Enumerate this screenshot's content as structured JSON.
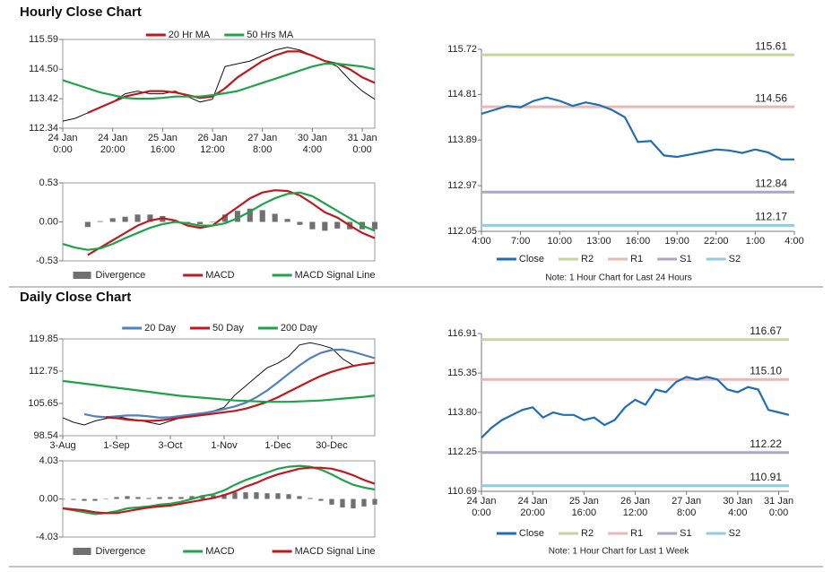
{
  "sections": [
    "Hourly Close Chart",
    "Daily Close Chart"
  ],
  "chart_data": [
    {
      "type": "line",
      "frame": true,
      "legend": "top",
      "categories": [
        "24 Jan\n0:00",
        null,
        null,
        null,
        "24 Jan\n20:00",
        null,
        null,
        null,
        "25 Jan\n16:00",
        null,
        null,
        null,
        "26 Jan\n12:00",
        null,
        null,
        null,
        "27 Jan\n8:00",
        null,
        null,
        null,
        "30 Jan\n4:00",
        null,
        null,
        null,
        "31 Jan\n0:00",
        null
      ],
      "ylim": [
        112.34,
        115.59
      ],
      "yticks": [
        112.34,
        113.42,
        {
          "value": 114.5,
          "label": "114.50"
        },
        115.59
      ],
      "series": [
        {
          "color": "#111111",
          "values": [
            112.6,
            112.7,
            112.9,
            113.1,
            113.3,
            113.6,
            113.7,
            113.6,
            113.6,
            113.7,
            113.5,
            113.3,
            113.4,
            114.6,
            114.7,
            114.8,
            115.0,
            115.2,
            115.3,
            115.2,
            115.0,
            114.8,
            114.6,
            114.1,
            113.7,
            113.4
          ]
        },
        {
          "name": "20 Hr MA",
          "color": "#c0181f",
          "values": [
            null,
            null,
            112.9,
            113.1,
            113.3,
            113.5,
            113.6,
            113.7,
            113.7,
            113.65,
            113.55,
            113.45,
            113.5,
            113.8,
            114.2,
            114.5,
            114.8,
            115.0,
            115.15,
            115.15,
            115.0,
            114.8,
            114.7,
            114.5,
            114.2,
            114.0
          ]
        },
        {
          "name": "50 Hrs MA",
          "color": "#1fa34a",
          "values": [
            114.1,
            113.95,
            113.8,
            113.65,
            113.55,
            113.45,
            113.42,
            113.42,
            113.45,
            113.5,
            113.5,
            113.5,
            113.55,
            113.62,
            113.7,
            113.85,
            114.0,
            114.15,
            114.3,
            114.45,
            114.6,
            114.7,
            114.7,
            114.65,
            114.6,
            114.5
          ]
        }
      ]
    },
    {
      "type": "macd",
      "frame": true,
      "legend": "bottom",
      "ylim": [
        -0.53,
        0.53
      ],
      "yticks": [
        -0.53,
        {
          "value": 0,
          "label": "0.00"
        },
        0.53
      ],
      "series": [
        {
          "name": "Divergence",
          "mark": "bar",
          "color": "#707070",
          "values": [
            null,
            null,
            -0.07,
            0.01,
            0.05,
            0.07,
            0.1,
            0.1,
            0.08,
            0.02,
            -0.03,
            -0.03,
            0,
            0.1,
            0.15,
            0.18,
            0.16,
            0.11,
            0.04,
            -0.04,
            -0.1,
            -0.12,
            -0.09,
            -0.1,
            -0.1,
            -0.1
          ]
        },
        {
          "name": "MACD",
          "color": "#c0181f",
          "values": [
            null,
            null,
            -0.45,
            -0.35,
            -0.25,
            -0.15,
            -0.05,
            0.02,
            0.05,
            0.02,
            -0.05,
            -0.08,
            -0.05,
            0.08,
            0.2,
            0.32,
            0.4,
            0.43,
            0.42,
            0.36,
            0.25,
            0.13,
            0.06,
            -0.05,
            -0.15,
            -0.22
          ]
        },
        {
          "name": "MACD Signal Line",
          "color": "#1fa34a",
          "values": [
            -0.3,
            -0.35,
            -0.38,
            -0.36,
            -0.3,
            -0.22,
            -0.15,
            -0.08,
            -0.03,
            0,
            -0.02,
            -0.05,
            -0.05,
            -0.02,
            0.05,
            0.14,
            0.24,
            0.32,
            0.38,
            0.4,
            0.35,
            0.25,
            0.15,
            0.05,
            -0.05,
            -0.12
          ]
        }
      ]
    },
    {
      "type": "levels",
      "frame": false,
      "legend": "bottom",
      "note": "Note: 1 Hour Chart for Last 24 Hours",
      "categories": [
        "4:00",
        null,
        null,
        "7:00",
        null,
        null,
        "10:00",
        null,
        null,
        "13:00",
        null,
        null,
        "16:00",
        null,
        null,
        "19:00",
        null,
        null,
        "22:00",
        null,
        null,
        "1:00",
        null,
        null,
        "4:00"
      ],
      "ylim": [
        112.05,
        115.72
      ],
      "yticks": [
        112.05,
        112.97,
        113.89,
        114.81,
        115.72
      ],
      "series": [
        {
          "name": "Close",
          "color": "#1f6db5",
          "values": [
            114.42,
            114.5,
            114.58,
            114.55,
            114.68,
            114.75,
            114.68,
            114.58,
            114.65,
            114.6,
            114.5,
            114.35,
            113.85,
            113.87,
            113.58,
            113.55,
            113.6,
            113.65,
            113.7,
            113.68,
            113.63,
            113.7,
            113.64,
            113.5,
            113.5
          ]
        }
      ],
      "levels": {
        "names": [
          "R2",
          "R1",
          "S1",
          "S2"
        ],
        "colors": [
          "#c3d69b",
          "#e6b9b8",
          "#b3a2c7",
          "#93cddd"
        ],
        "values": [
          115.61,
          114.56,
          112.84,
          112.17
        ],
        "value_labels": [
          "115.61",
          "114.56",
          "112.84",
          "112.17"
        ]
      }
    },
    {
      "type": "line",
      "frame": true,
      "legend": "top",
      "categories": [
        "3-Aug",
        null,
        null,
        null,
        null,
        "1-Sep",
        null,
        null,
        null,
        null,
        "3-Oct",
        null,
        null,
        null,
        null,
        "1-Nov",
        null,
        null,
        null,
        null,
        "1-Dec",
        null,
        null,
        null,
        null,
        "30-Dec",
        null,
        null,
        null,
        null
      ],
      "ylim": [
        98.54,
        119.85
      ],
      "yticks": [
        98.54,
        105.65,
        112.75,
        119.85
      ],
      "series": [
        {
          "color": "#111111",
          "values": [
            102.5,
            101.5,
            100.9,
            101.8,
            102.3,
            102.8,
            102.3,
            102.0,
            101.5,
            101.0,
            101.8,
            102.5,
            103.0,
            103.5,
            104.0,
            104.8,
            107.5,
            109.5,
            111.5,
            113.5,
            114.5,
            116.0,
            118.5,
            119.0,
            118.5,
            117.8,
            115.5,
            114.0,
            114.2,
            114.6
          ]
        },
        {
          "name": "20 Day",
          "color": "#4f81bd",
          "values": [
            null,
            null,
            103.3,
            102.8,
            102.6,
            102.8,
            103.0,
            103.0,
            102.8,
            102.5,
            102.6,
            102.9,
            103.2,
            103.5,
            103.9,
            104.4,
            105.0,
            105.8,
            107.0,
            108.5,
            110.3,
            112.2,
            114.0,
            115.6,
            116.8,
            117.4,
            117.5,
            117.0,
            116.3,
            115.6
          ]
        },
        {
          "name": "50 Day",
          "color": "#c0181f",
          "values": [
            null,
            null,
            null,
            null,
            102.6,
            102.4,
            102.1,
            101.9,
            101.8,
            101.9,
            102.2,
            102.5,
            102.8,
            103.1,
            103.4,
            103.7,
            104.0,
            104.5,
            105.2,
            106.0,
            107.0,
            108.2,
            109.4,
            110.6,
            111.7,
            112.6,
            113.3,
            113.9,
            114.3,
            114.6
          ]
        },
        {
          "name": "200 Day",
          "color": "#1fa34a",
          "values": [
            110.6,
            110.3,
            110.0,
            109.7,
            109.4,
            109.1,
            108.8,
            108.5,
            108.2,
            107.9,
            107.6,
            107.3,
            107.1,
            106.9,
            106.7,
            106.5,
            106.3,
            106.2,
            106.1,
            106.0,
            106.0,
            106.0,
            106.1,
            106.2,
            106.3,
            106.5,
            106.7,
            106.9,
            107.1,
            107.4
          ]
        }
      ]
    },
    {
      "type": "macd",
      "frame": true,
      "legend": "bottom",
      "ylim": [
        -4.03,
        4.03
      ],
      "yticks": [
        -4.03,
        {
          "value": 0,
          "label": "0.00"
        },
        4.03
      ],
      "series": [
        {
          "name": "Divergence",
          "mark": "bar",
          "color": "#707070",
          "values": [
            0,
            -0.1,
            -0.2,
            -0.2,
            0,
            0.2,
            0.3,
            0.2,
            0.1,
            0.2,
            0.2,
            0.2,
            0.3,
            0.4,
            0.4,
            0.5,
            0.7,
            0.7,
            0.7,
            0.6,
            0.6,
            0.5,
            0.3,
            0.1,
            -0.2,
            -0.6,
            -0.9,
            -1.0,
            -0.8,
            -0.6
          ]
        },
        {
          "name": "MACD",
          "color": "#1fa34a",
          "values": [
            -1.0,
            -1.2,
            -1.4,
            -1.6,
            -1.5,
            -1.3,
            -1.0,
            -0.9,
            -0.8,
            -0.6,
            -0.5,
            -0.3,
            0.0,
            0.3,
            0.5,
            0.9,
            1.5,
            2.0,
            2.4,
            2.8,
            3.2,
            3.4,
            3.5,
            3.4,
            3.1,
            2.6,
            2.0,
            1.5,
            1.2,
            1.0
          ]
        },
        {
          "name": "MACD Signal Line",
          "color": "#c0181f",
          "values": [
            -1.0,
            -1.1,
            -1.2,
            -1.4,
            -1.5,
            -1.5,
            -1.3,
            -1.1,
            -0.9,
            -0.8,
            -0.7,
            -0.5,
            -0.3,
            -0.1,
            0.1,
            0.4,
            0.8,
            1.3,
            1.7,
            2.2,
            2.6,
            2.9,
            3.2,
            3.3,
            3.3,
            3.2,
            2.9,
            2.5,
            2.0,
            1.6
          ]
        }
      ]
    },
    {
      "type": "levels",
      "frame": false,
      "legend": "bottom",
      "note": "Note: 1 Hour Chart for Last 1 Week",
      "categories": [
        "24 Jan\n0:00",
        null,
        null,
        null,
        null,
        "24 Jan\n20:00",
        null,
        null,
        null,
        null,
        "25 Jan\n16:00",
        null,
        null,
        null,
        null,
        "26 Jan\n12:00",
        null,
        null,
        null,
        null,
        "27 Jan\n8:00",
        null,
        null,
        null,
        null,
        "30 Jan\n4:00",
        null,
        null,
        null,
        "31 Jan\n0:00",
        null
      ],
      "ylim": [
        110.69,
        116.91
      ],
      "yticks": [
        110.69,
        112.25,
        {
          "value": 113.8,
          "label": "113.80"
        },
        115.35,
        116.91
      ],
      "series": [
        {
          "name": "Close",
          "color": "#1f6db5",
          "values": [
            112.8,
            113.2,
            113.5,
            113.7,
            113.9,
            114.0,
            113.6,
            113.8,
            113.7,
            113.7,
            113.5,
            113.6,
            113.3,
            113.5,
            114.0,
            114.3,
            114.1,
            114.7,
            114.6,
            115.0,
            115.2,
            115.1,
            115.2,
            115.1,
            114.7,
            114.6,
            114.8,
            114.7,
            113.9,
            113.8,
            113.7
          ]
        }
      ],
      "levels": {
        "names": [
          "R2",
          "R1",
          "S1",
          "S2"
        ],
        "colors": [
          "#c3d69b",
          "#e6b9b8",
          "#b3a2c7",
          "#93cddd"
        ],
        "values": [
          116.67,
          115.1,
          112.22,
          110.91
        ],
        "value_labels": [
          "116.67",
          "115.10",
          "112.22",
          "110.91"
        ]
      }
    }
  ]
}
